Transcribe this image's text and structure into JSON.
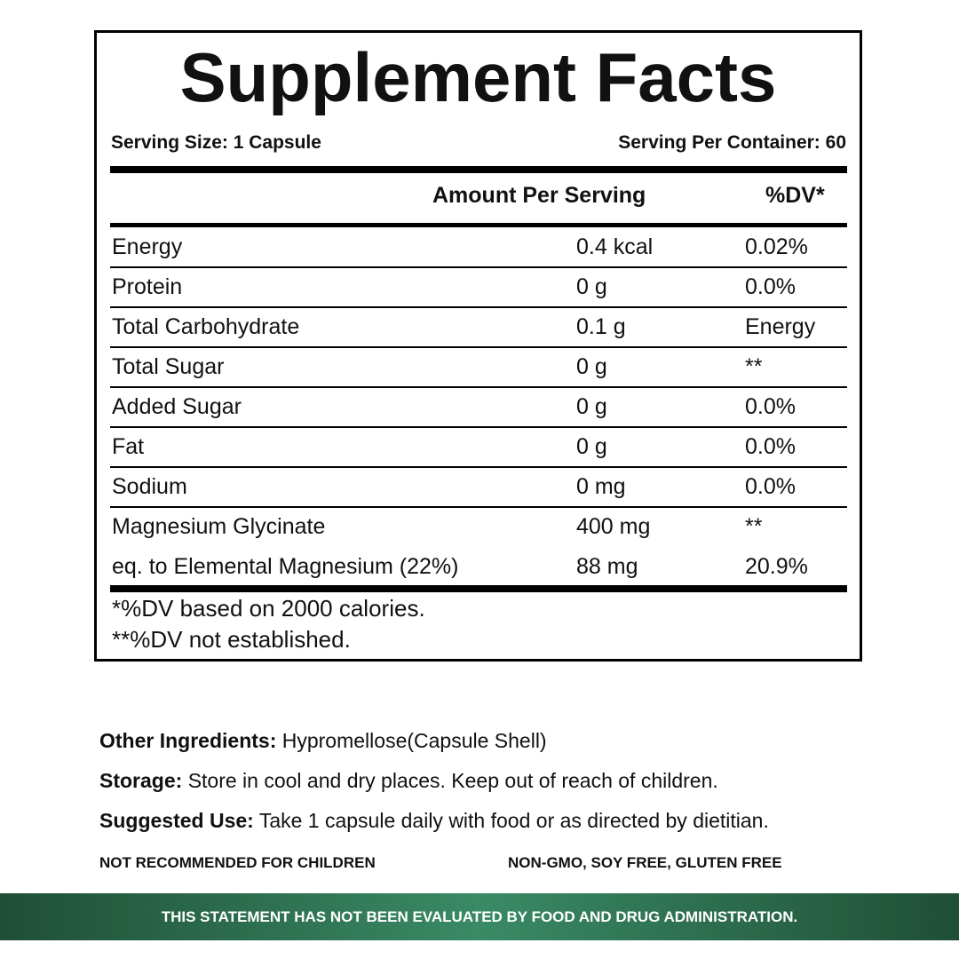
{
  "label": {
    "title": "Supplement Facts",
    "serving_size": "Serving Size: 1 Capsule",
    "servings_per_container": "Serving Per Container: 60",
    "header": {
      "amount": "Amount Per Serving",
      "dv": "%DV*"
    },
    "rows": [
      [
        "Energy",
        "0.4 kcal",
        "0.02%"
      ],
      [
        "Protein",
        "0 g",
        "0.0%"
      ],
      [
        "Total Carbohydrate",
        "0.1 g",
        "Energy"
      ],
      [
        "Total Sugar",
        "0 g",
        "**"
      ],
      [
        "Added Sugar",
        "0 g",
        "0.0%"
      ],
      [
        "Fat",
        "0 g",
        "0.0%"
      ],
      [
        "Sodium",
        "0 mg",
        "0.0%"
      ],
      [
        "Magnesium Glycinate",
        "400 mg",
        "**"
      ],
      [
        "eq. to Elemental Magnesium (22%)",
        "88 mg",
        "20.9%"
      ]
    ],
    "footnotes": [
      "*%DV based on 2000 calories.",
      "**%DV not established."
    ]
  },
  "info": [
    {
      "label": "Other Ingredients:",
      "text": "Hypromellose(Capsule Shell)"
    },
    {
      "label": "Storage:",
      "text": "Store in cool and dry places. Keep out of reach of children."
    },
    {
      "label": "Suggested Use:",
      "text": "Take 1 capsule daily with food or as directed by dietitian."
    }
  ],
  "notices": [
    "NOT RECOMMENDED FOR CHILDREN",
    "NON-GMO, SOY FREE, GLUTEN FREE"
  ],
  "banner": "THIS STATEMENT HAS NOT BEEN EVALUATED BY FOOD AND DRUG ADMINISTRATION."
}
